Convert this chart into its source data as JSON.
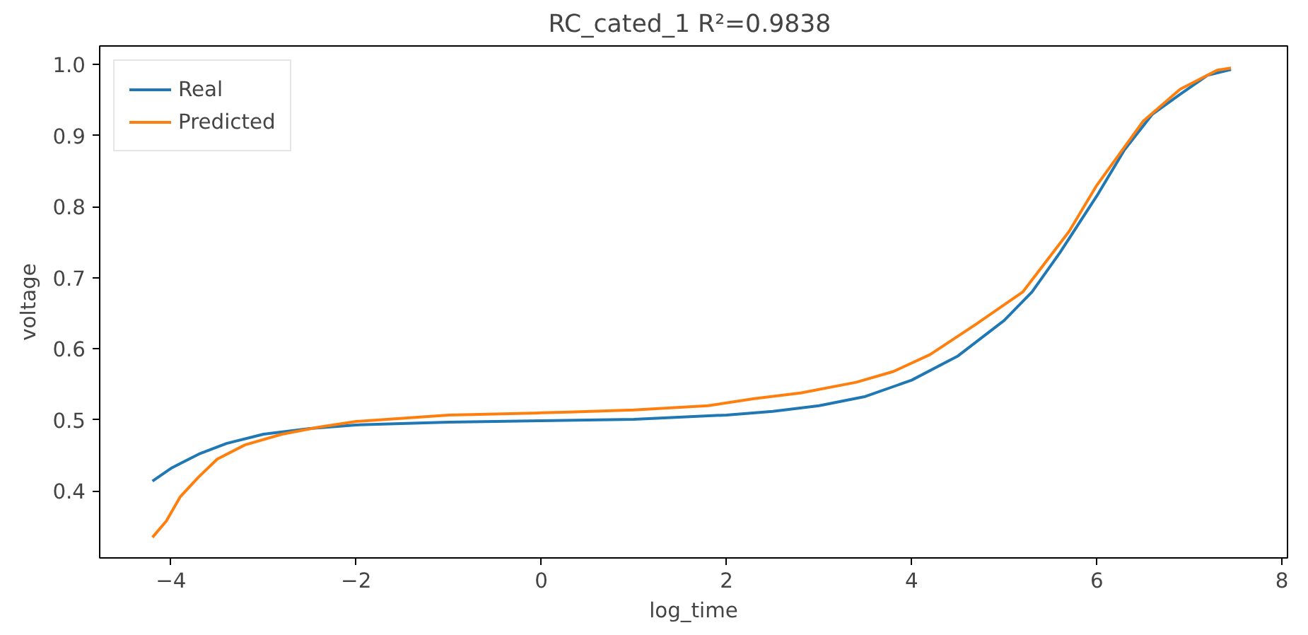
{
  "chart_data": {
    "type": "line",
    "title": "RC_cated_1  R²=0.9838",
    "xlabel": "log_time",
    "ylabel": "voltage",
    "xlim": [
      -4.77,
      8.06
    ],
    "ylim": [
      0.306,
      1.026
    ],
    "xticks": [
      -4,
      -2,
      0,
      2,
      4,
      6,
      8
    ],
    "yticks": [
      0.4,
      0.5,
      0.6,
      0.7,
      0.8,
      0.9,
      {
        "value": 1.0,
        "label": "1.0"
      }
    ],
    "grid": false,
    "legend": "top left",
    "marker": "none",
    "line_style": "solid",
    "series": [
      {
        "name": "Real",
        "color": "#1f77b4",
        "x": [
          -4.2,
          -4.0,
          -3.7,
          -3.4,
          -3.0,
          -2.5,
          -2.0,
          -1.0,
          0,
          1,
          2,
          2.5,
          3.0,
          3.5,
          4.0,
          4.5,
          5.0,
          5.3,
          5.6,
          6.0,
          6.3,
          6.6,
          6.9,
          7.2,
          7.45
        ],
        "values": [
          0.414,
          0.432,
          0.452,
          0.467,
          0.48,
          0.488,
          0.493,
          0.497,
          0.499,
          0.501,
          0.507,
          0.512,
          0.52,
          0.533,
          0.556,
          0.59,
          0.64,
          0.68,
          0.735,
          0.815,
          0.88,
          0.93,
          0.958,
          0.985,
          0.993
        ]
      },
      {
        "name": "Predicted",
        "color": "#ff7f0e",
        "x": [
          -4.2,
          -4.05,
          -3.9,
          -3.7,
          -3.5,
          -3.2,
          -2.8,
          -2.4,
          -2.0,
          -1.0,
          0,
          0.3,
          1.0,
          1.8,
          2.3,
          2.8,
          3.4,
          3.8,
          4.2,
          4.7,
          5.2,
          5.7,
          6.0,
          6.5,
          6.9,
          7.3,
          7.45
        ],
        "values": [
          0.335,
          0.358,
          0.392,
          0.42,
          0.445,
          0.465,
          0.48,
          0.49,
          0.498,
          0.507,
          0.51,
          0.511,
          0.514,
          0.52,
          0.53,
          0.538,
          0.553,
          0.568,
          0.592,
          0.635,
          0.68,
          0.765,
          0.83,
          0.92,
          0.965,
          0.992,
          0.995
        ]
      }
    ]
  }
}
